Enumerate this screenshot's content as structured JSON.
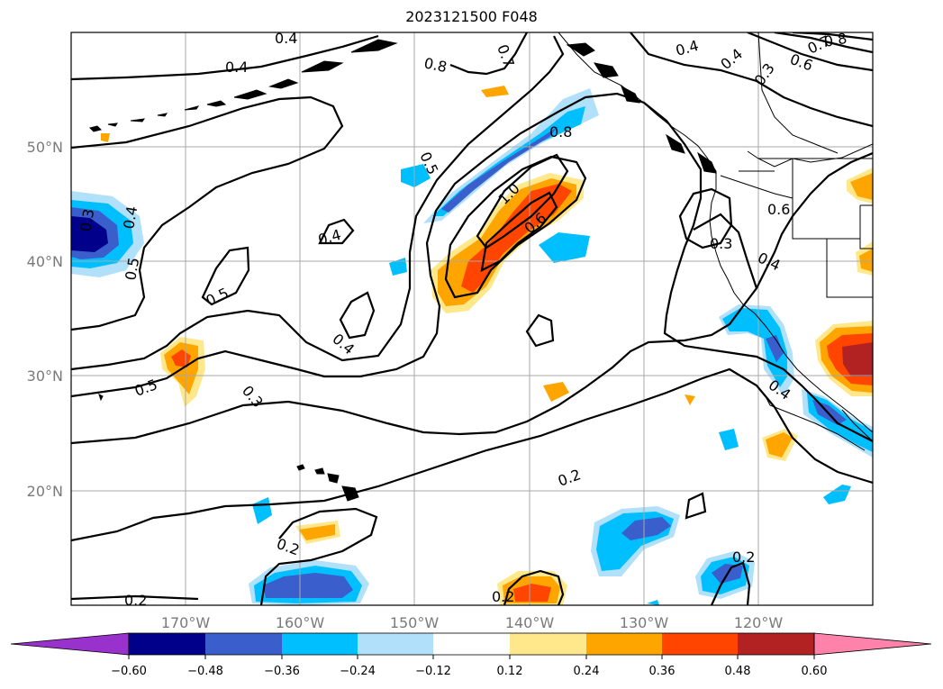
{
  "title": "2023121500 F048",
  "map": {
    "lat_labels": [
      "50°N",
      "40°N",
      "30°N",
      "20°N"
    ],
    "lon_labels": [
      "170°W",
      "160°W",
      "150°W",
      "140°W",
      "130°W",
      "120°W"
    ],
    "contour_labels": [
      "0.4",
      "0.8",
      "0.7",
      "0.4",
      "0.4",
      "0.3",
      "0.8",
      "0.5",
      "0.6",
      "0.5",
      "0.4",
      "1.0",
      "0.6",
      "0.4",
      "0.6",
      "0.3",
      "0.4",
      "0.3",
      "0.5",
      "0.4",
      "0.5",
      "0.3",
      "0.4",
      "0.2",
      "0.2",
      "0.2",
      "0.2",
      "0.2",
      "0.5",
      "0.4",
      "0.6",
      "0.7",
      "0.8"
    ],
    "colorbar": {
      "ticks": [
        "−0.60",
        "−0.48",
        "−0.36",
        "−0.24",
        "−0.12",
        "0.12",
        "0.24",
        "0.36",
        "0.48",
        "0.60"
      ],
      "colors": [
        "#9932cc",
        "#00008b",
        "#3a5fcd",
        "#00bfff",
        "#b0e0fa",
        "#ffffff",
        "#ffe88c",
        "#ffa500",
        "#ff4500",
        "#b22222",
        "#ff82ab"
      ]
    },
    "fill_colors": {
      "neg1": "#b0e0fa",
      "neg2": "#00bfff",
      "neg3": "#3a5fcd",
      "neg4": "#00008b",
      "pos1": "#ffe88c",
      "pos2": "#ffa500",
      "pos3": "#ff4500",
      "pos4": "#b22222"
    }
  }
}
